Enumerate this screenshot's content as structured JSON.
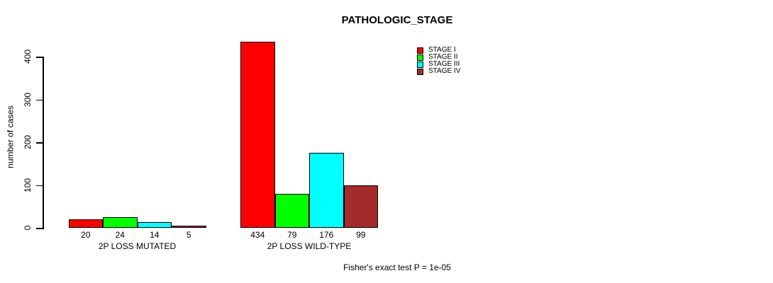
{
  "chart_data": {
    "type": "bar",
    "title": "PATHOLOGIC_STAGE",
    "ylabel": "number of cases",
    "yticks": [
      0,
      100,
      200,
      300,
      400
    ],
    "ylim": [
      0,
      440
    ],
    "grid": false,
    "legend_position": "top-right",
    "categories": [
      "2P LOSS MUTATED",
      "2P LOSS WILD-TYPE"
    ],
    "series": [
      {
        "name": "STAGE I",
        "color": "#ff0000",
        "values": [
          20,
          434
        ]
      },
      {
        "name": "STAGE II",
        "color": "#00ff00",
        "values": [
          24,
          79
        ]
      },
      {
        "name": "STAGE III",
        "color": "#00ffff",
        "values": [
          14,
          176
        ]
      },
      {
        "name": "STAGE IV",
        "color": "#a52a2a",
        "values": [
          5,
          99
        ]
      }
    ],
    "bar_value_labels": [
      [
        "20",
        "24",
        "14",
        "5"
      ],
      [
        "434",
        "79",
        "176",
        "99"
      ]
    ],
    "footnote": "Fisher's exact test P = 1e-05"
  }
}
